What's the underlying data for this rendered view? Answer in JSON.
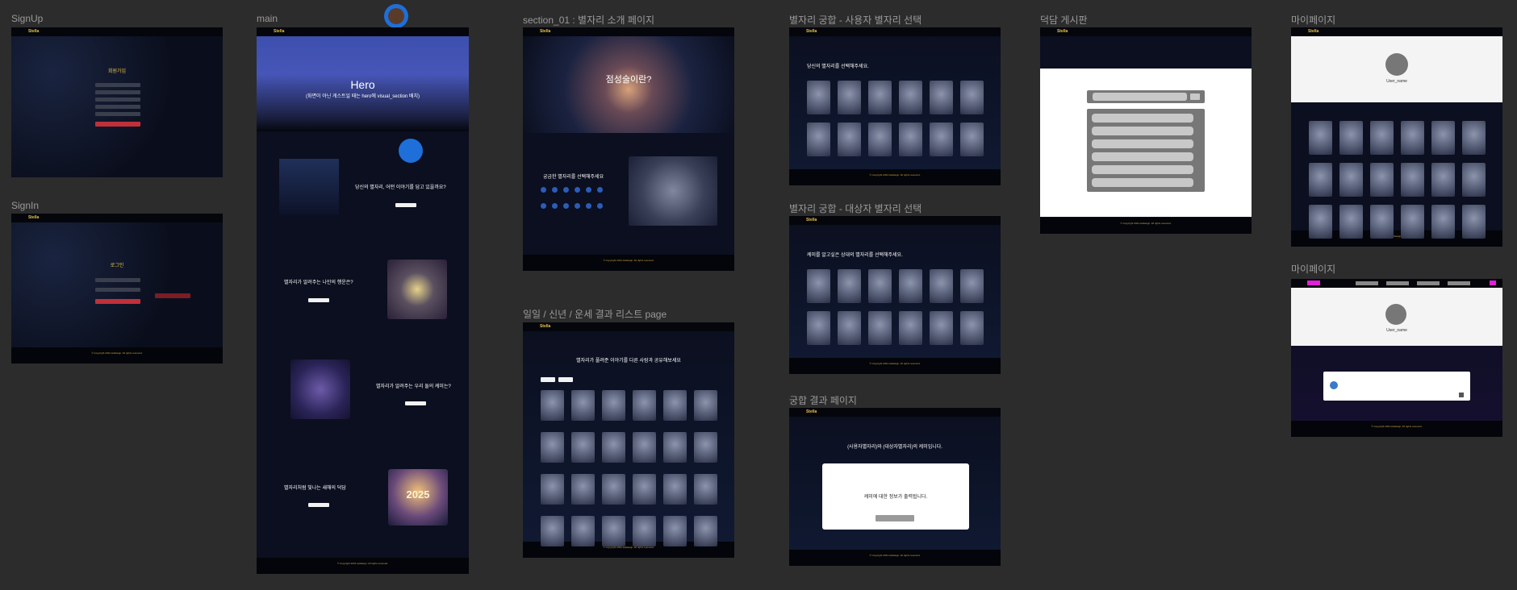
{
  "frames": {
    "signup": {
      "label": "SignUp",
      "title": "회원가입"
    },
    "signin": {
      "label": "SignIn",
      "title": "로그인"
    },
    "main": {
      "label": "main",
      "hero_title": "Hero",
      "hero_sub": "(화면이 아닌 게스트일 때는 hero에 visual_section 배치)",
      "q1": "당신의 별자리, 어떤 이야기를 담고 있을까요?",
      "q2": "별자리가 알려주는 나만의 행운은?",
      "q3": "별자리가 알려주는 우리 둘의 케미는?",
      "q4": "별자리처럼 빛나는 새해의 덕담",
      "year": "2025"
    },
    "section01": {
      "label": "section_01 : 별자리 소개 페이지",
      "hero": "점성술이란?",
      "pick": "궁금한 별자리를 선택해주세요"
    },
    "compat_user": {
      "label": "별자리 궁합 - 사용자 별자리 선택",
      "prompt": "당신의 별자리를 선택해주세요."
    },
    "compat_target": {
      "label": "별자리 궁합 - 대상자 별자리 선택",
      "prompt": "케미를 알고싶은 상대의 별자리를 선택해주세요."
    },
    "compat_result": {
      "label": "궁합 결과 페이지",
      "title": "(사용자별자리)와 (대상자별자리)의 케미입니다.",
      "info": "케미에 대한 정보가 출력됩니다."
    },
    "daily": {
      "label": "일일 / 신년 / 운세 결과 리스트 page",
      "title": "별자리가 풀려준 이야기를 다른 사람과 공유해보세요"
    },
    "board": {
      "label": "덕담 게시판"
    },
    "mypage1": {
      "label": "마이페이지",
      "user": "User_name"
    },
    "mypage2": {
      "label": "마이페이지",
      "user": "User_name"
    }
  },
  "nav": {
    "logo": "Stella"
  },
  "footer": {
    "copyright": "© Copyright 2024 stellasign. All rights reserved."
  },
  "colors": {
    "canvas": "#2c2c2c",
    "frame_bg": "#0b0f1f",
    "accent_gold": "#e8c24a",
    "accent_red": "#c0303a",
    "accent_magenta": "#e020d8",
    "zodiac_blue": "#2b5cb8"
  }
}
